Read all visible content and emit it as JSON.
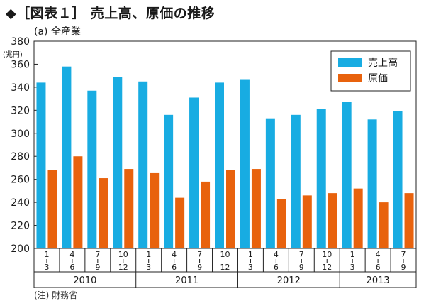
{
  "figure": {
    "title": "◆［図表１］ 売上高、原価の推移",
    "subtitle": "(a) 全産業",
    "source_note": "(注) 財務省"
  },
  "chart_data": {
    "type": "bar",
    "title": "◆［図表１］ 売上高、原価の推移",
    "subtitle": "(a) 全産業",
    "unit_label": "(兆円)",
    "ylim": [
      200,
      380
    ],
    "yticks": [
      "200",
      "220",
      "240",
      "260",
      "280",
      "300",
      "320",
      "340",
      "360",
      "380"
    ],
    "grid": false,
    "legend_position": "top-right",
    "categories": [
      {
        "month_start": "1",
        "month_end": "3"
      },
      {
        "month_start": "4",
        "month_end": "6"
      },
      {
        "month_start": "7",
        "month_end": "9"
      },
      {
        "month_start": "10",
        "month_end": "12"
      },
      {
        "month_start": "1",
        "month_end": "3"
      },
      {
        "month_start": "4",
        "month_end": "6"
      },
      {
        "month_start": "7",
        "month_end": "9"
      },
      {
        "month_start": "10",
        "month_end": "12"
      },
      {
        "month_start": "1",
        "month_end": "3"
      },
      {
        "month_start": "4",
        "month_end": "6"
      },
      {
        "month_start": "7",
        "month_end": "9"
      },
      {
        "month_start": "10",
        "month_end": "12"
      },
      {
        "month_start": "1",
        "month_end": "3"
      },
      {
        "month_start": "4",
        "month_end": "6"
      },
      {
        "month_start": "7",
        "month_end": "9"
      }
    ],
    "years": [
      {
        "label": "2010",
        "quarters": 4
      },
      {
        "label": "2011",
        "quarters": 4
      },
      {
        "label": "2012",
        "quarters": 4
      },
      {
        "label": "2013",
        "quarters": 3
      }
    ],
    "series": [
      {
        "name": "売上高",
        "color": "#18ace2",
        "values": [
          344,
          358,
          337,
          349,
          345,
          316,
          331,
          344,
          347,
          313,
          316,
          321,
          327,
          312,
          319
        ]
      },
      {
        "name": "原価",
        "color": "#e8620d",
        "values": [
          268,
          280,
          261,
          269,
          266,
          244,
          258,
          268,
          269,
          243,
          246,
          248,
          252,
          240,
          248
        ]
      }
    ]
  }
}
